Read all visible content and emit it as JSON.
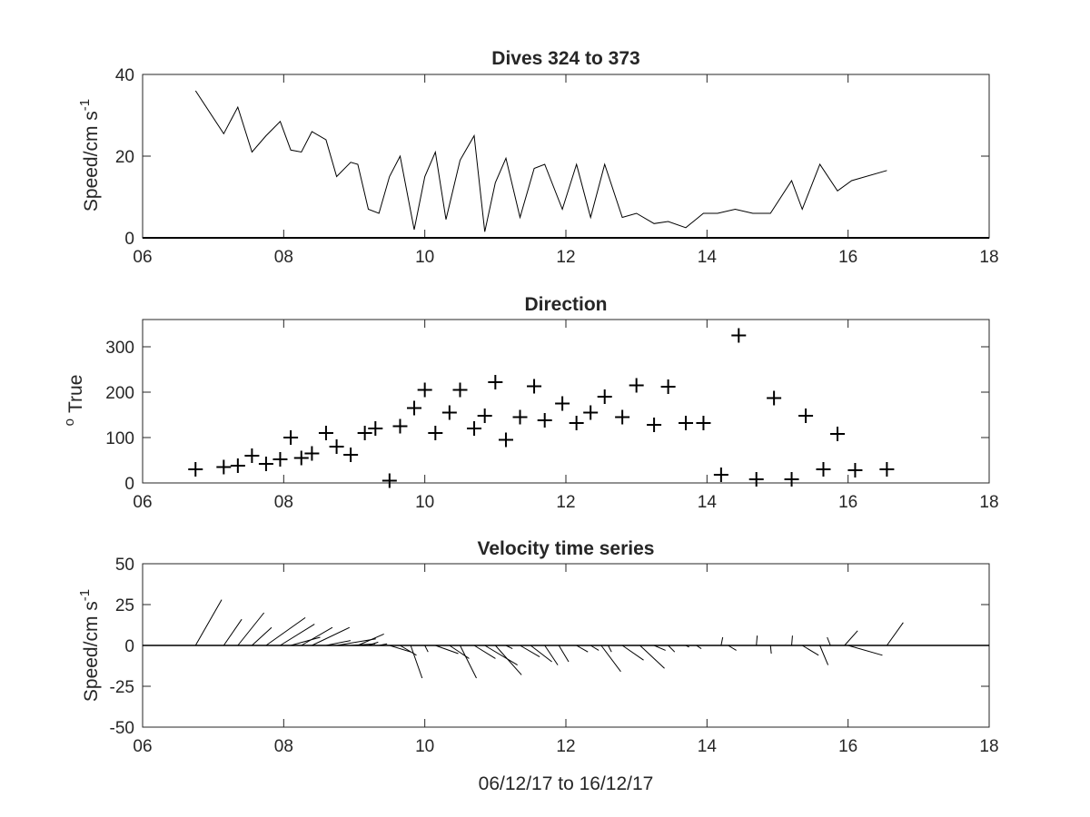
{
  "chart_data": [
    {
      "type": "line",
      "title": "Dives 324 to 373",
      "xlabel": "",
      "ylabel": "Speed/cm s",
      "ylabel_sup": "-1",
      "xlim": [
        6,
        18
      ],
      "ylim": [
        0,
        40
      ],
      "xticks": [
        6,
        8,
        10,
        12,
        14,
        16,
        18
      ],
      "xticklabels": [
        "06",
        "08",
        "10",
        "12",
        "14",
        "16",
        "18"
      ],
      "yticks": [
        0,
        20,
        40
      ],
      "yticklabels": [
        "0",
        "20",
        "40"
      ],
      "series": [
        {
          "x": [
            6.75,
            7.15,
            7.35,
            7.55,
            7.75,
            7.95,
            8.1,
            8.25,
            8.4,
            8.6,
            8.75,
            8.95,
            9.05,
            9.2,
            9.35,
            9.5,
            9.65,
            9.85,
            10.0,
            10.15,
            10.3,
            10.5,
            10.7,
            10.85,
            11.0,
            11.15,
            11.35,
            11.55,
            11.7,
            11.95,
            12.15,
            12.35,
            12.55,
            12.8,
            13.0,
            13.25,
            13.45,
            13.7,
            13.95,
            14.15,
            14.4,
            14.65,
            14.9,
            15.2,
            15.35,
            15.6,
            15.85,
            16.05,
            16.55
          ],
          "y": [
            36,
            25.5,
            32,
            21,
            25,
            28.5,
            21.5,
            21,
            26,
            24,
            15,
            18.5,
            18,
            7,
            6,
            15,
            20,
            2,
            15,
            21,
            4.5,
            19,
            25,
            1.5,
            13.5,
            19.5,
            5,
            17,
            18,
            7,
            18,
            5,
            18,
            5,
            6,
            3.5,
            4,
            2.5,
            6,
            6,
            7,
            6,
            6,
            14,
            7,
            18,
            11.5,
            14,
            16.5
          ]
        }
      ]
    },
    {
      "type": "scatter",
      "title": "Direction",
      "xlabel": "",
      "ylabel": "True",
      "ylabel_sup": "o",
      "xlim": [
        6,
        18
      ],
      "ylim": [
        0,
        360
      ],
      "xticks": [
        6,
        8,
        10,
        12,
        14,
        16,
        18
      ],
      "xticklabels": [
        "06",
        "08",
        "10",
        "12",
        "14",
        "16",
        "18"
      ],
      "yticks": [
        0,
        100,
        200,
        300
      ],
      "yticklabels": [
        "0",
        "100",
        "200",
        "300"
      ],
      "series": [
        {
          "marker": "+",
          "x": [
            6.75,
            7.15,
            7.35,
            7.55,
            7.75,
            7.95,
            8.1,
            8.25,
            8.4,
            8.6,
            8.75,
            8.95,
            9.15,
            9.3,
            9.5,
            9.65,
            9.85,
            10.0,
            10.15,
            10.35,
            10.5,
            10.7,
            10.85,
            11.0,
            11.15,
            11.35,
            11.55,
            11.7,
            11.95,
            12.15,
            12.35,
            12.55,
            12.8,
            13.0,
            13.25,
            13.45,
            13.7,
            13.95,
            14.2,
            14.45,
            14.7,
            14.95,
            15.2,
            15.4,
            15.65,
            15.85,
            16.1,
            16.55
          ],
          "y": [
            30,
            35,
            38,
            60,
            42,
            52,
            100,
            55,
            65,
            110,
            80,
            62,
            110,
            120,
            5,
            125,
            165,
            205,
            110,
            155,
            205,
            120,
            148,
            222,
            95,
            145,
            213,
            138,
            175,
            132,
            155,
            190,
            145,
            215,
            128,
            212,
            132,
            132,
            18,
            325,
            8,
            187,
            8,
            148,
            30,
            108,
            28,
            30
          ]
        }
      ]
    },
    {
      "type": "line",
      "title": "Velocity time series",
      "xlabel": "06/12/17 to 16/12/17",
      "ylabel": "Speed/cm s",
      "ylabel_sup": "-1",
      "xlim": [
        6,
        18
      ],
      "ylim": [
        -50,
        50
      ],
      "xticks": [
        6,
        8,
        10,
        12,
        14,
        16,
        18
      ],
      "xticklabels": [
        "06",
        "08",
        "10",
        "12",
        "14",
        "16",
        "18"
      ],
      "yticks": [
        -50,
        -25,
        0,
        25,
        50
      ],
      "yticklabels": [
        "-50",
        "-25",
        "0",
        "25",
        "50"
      ],
      "vectors": [
        {
          "x": 6.75,
          "u": 16,
          "v": 28
        },
        {
          "x": 7.15,
          "u": 11,
          "v": 16
        },
        {
          "x": 7.35,
          "u": 16,
          "v": 20
        },
        {
          "x": 7.55,
          "u": 12,
          "v": 11
        },
        {
          "x": 7.75,
          "u": 24,
          "v": 17
        },
        {
          "x": 7.95,
          "u": 21,
          "v": 13
        },
        {
          "x": 8.1,
          "u": 18,
          "v": 5
        },
        {
          "x": 8.25,
          "u": 19,
          "v": 11
        },
        {
          "x": 8.4,
          "u": 23,
          "v": 11
        },
        {
          "x": 8.6,
          "u": 15,
          "v": 3
        },
        {
          "x": 8.75,
          "u": 24,
          "v": 4
        },
        {
          "x": 8.95,
          "u": 15,
          "v": 1
        },
        {
          "x": 9.05,
          "u": 16,
          "v": 7
        },
        {
          "x": 9.2,
          "u": 6,
          "v": 2
        },
        {
          "x": 9.35,
          "u": 5,
          "v": 1
        },
        {
          "x": 9.5,
          "u": 13,
          "v": -4
        },
        {
          "x": 9.65,
          "u": 10,
          "v": -6
        },
        {
          "x": 9.8,
          "u": 7,
          "v": -20
        },
        {
          "x": 10.0,
          "u": 2,
          "v": -4
        },
        {
          "x": 10.15,
          "u": 14,
          "v": -5
        },
        {
          "x": 10.35,
          "u": 12,
          "v": -8
        },
        {
          "x": 10.5,
          "u": 10,
          "v": -20
        },
        {
          "x": 10.7,
          "u": 13,
          "v": -8
        },
        {
          "x": 10.85,
          "u": 20,
          "v": -12
        },
        {
          "x": 11.0,
          "u": 16,
          "v": -18
        },
        {
          "x": 11.15,
          "u": 4,
          "v": -2
        },
        {
          "x": 11.35,
          "u": 12,
          "v": -7
        },
        {
          "x": 11.5,
          "u": 13,
          "v": -10
        },
        {
          "x": 11.7,
          "u": 8,
          "v": -12
        },
        {
          "x": 11.9,
          "u": 6,
          "v": -10
        },
        {
          "x": 12.15,
          "u": 7,
          "v": -4
        },
        {
          "x": 12.35,
          "u": 5,
          "v": -3
        },
        {
          "x": 12.5,
          "u": 12,
          "v": -16
        },
        {
          "x": 12.6,
          "u": 2,
          "v": -4
        },
        {
          "x": 12.8,
          "u": 13,
          "v": -9
        },
        {
          "x": 13.05,
          "u": 15,
          "v": -14
        },
        {
          "x": 13.25,
          "u": 7,
          "v": -3
        },
        {
          "x": 13.45,
          "u": 4,
          "v": -4
        },
        {
          "x": 13.7,
          "u": 2,
          "v": -1
        },
        {
          "x": 13.85,
          "u": 3,
          "v": -2
        },
        {
          "x": 14.2,
          "u": 1,
          "v": 5
        },
        {
          "x": 14.3,
          "u": 5,
          "v": -3
        },
        {
          "x": 14.7,
          "u": 0.5,
          "v": 6
        },
        {
          "x": 14.9,
          "u": 0.5,
          "v": -5
        },
        {
          "x": 15.2,
          "u": 0.5,
          "v": 6
        },
        {
          "x": 15.35,
          "u": 10,
          "v": -6
        },
        {
          "x": 15.6,
          "u": 5,
          "v": -12
        },
        {
          "x": 15.75,
          "u": -2,
          "v": 5
        },
        {
          "x": 15.95,
          "u": 8,
          "v": 9
        },
        {
          "x": 16.0,
          "u": 21,
          "v": -6
        },
        {
          "x": 16.55,
          "u": 10,
          "v": 14
        }
      ]
    }
  ]
}
